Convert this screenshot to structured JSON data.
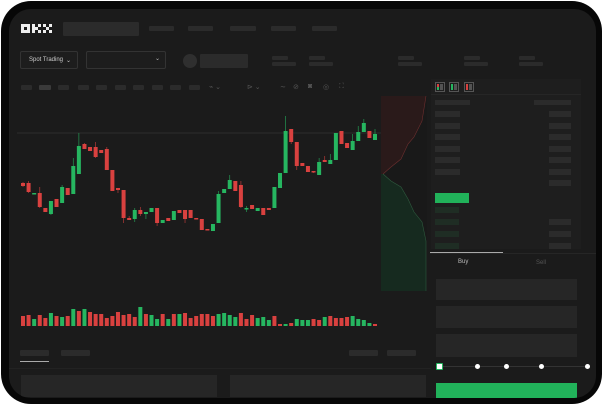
{
  "header": {
    "logo": "OKX",
    "nav_count": 5
  },
  "market_bar": {
    "trading_mode": "Spot Trading",
    "pair_selector": ""
  },
  "order_panel": {
    "tabs": [
      {
        "label": "Buy",
        "active": true
      },
      {
        "label": "Sell",
        "active": false
      }
    ],
    "slider_percent": 0,
    "submit_color": "#21b25a"
  },
  "colors": {
    "up": "#26b660",
    "down": "#d9413f",
    "background": "#1b1b1b"
  },
  "icons": [
    "order-book-both-icon",
    "order-book-bids-icon",
    "order-book-asks-icon",
    "indicator-icon",
    "drawing-icon",
    "ruler-icon",
    "camera-icon",
    "settings-icon",
    "fullscreen-icon"
  ],
  "chart_data": {
    "type": "candlestick",
    "ohlc": [
      [
        68,
        69,
        64,
        65
      ],
      [
        68,
        70,
        58,
        59
      ],
      [
        57,
        58,
        57,
        58
      ],
      [
        58,
        64,
        43,
        44
      ],
      [
        43,
        43,
        39,
        39
      ],
      [
        37,
        50,
        36,
        50
      ],
      [
        52,
        52,
        44,
        44
      ],
      [
        48,
        66,
        48,
        64
      ],
      [
        63,
        63,
        56,
        56
      ],
      [
        57,
        93,
        57,
        85
      ],
      [
        77,
        118,
        77,
        105
      ],
      [
        107,
        108,
        102,
        102
      ],
      [
        104,
        104,
        100,
        100
      ],
      [
        104,
        109,
        93,
        94
      ],
      [
        101,
        101,
        98,
        98
      ],
      [
        102,
        104,
        81,
        81
      ],
      [
        81,
        81,
        60,
        60
      ],
      [
        63,
        63,
        58,
        61
      ],
      [
        61,
        61,
        28,
        33
      ],
      [
        33,
        35,
        31,
        31
      ],
      [
        32,
        43,
        29,
        41
      ],
      [
        41,
        44,
        35,
        37
      ],
      [
        37,
        39,
        32,
        39
      ],
      [
        39,
        43,
        39,
        43
      ],
      [
        43,
        43,
        25,
        28
      ],
      [
        28,
        31,
        28,
        31
      ],
      [
        33,
        33,
        30,
        30
      ],
      [
        31,
        40,
        31,
        40
      ],
      [
        41,
        41,
        38,
        38
      ],
      [
        41,
        41,
        28,
        32
      ],
      [
        41,
        41,
        33,
        33
      ],
      [
        33,
        33,
        32,
        32
      ],
      [
        32,
        32,
        21,
        21
      ],
      [
        22,
        22,
        21,
        21
      ],
      [
        20,
        27,
        20,
        27
      ],
      [
        28,
        60,
        28,
        57
      ],
      [
        58,
        62,
        58,
        62
      ],
      [
        62,
        76,
        62,
        71
      ],
      [
        70,
        70,
        60,
        60
      ],
      [
        66,
        70,
        43,
        44
      ],
      [
        42,
        45,
        39,
        43
      ],
      [
        46,
        46,
        42,
        42
      ],
      [
        40,
        43,
        40,
        43
      ],
      [
        43,
        43,
        36,
        36
      ],
      [
        43,
        43,
        41,
        41
      ],
      [
        43,
        64,
        43,
        64
      ],
      [
        63,
        78,
        63,
        78
      ],
      [
        78,
        135,
        78,
        120
      ],
      [
        122,
        122,
        107,
        109
      ],
      [
        109,
        109,
        81,
        85
      ],
      [
        88,
        88,
        85,
        85
      ],
      [
        85,
        85,
        79,
        79
      ],
      [
        80,
        80,
        78,
        79
      ],
      [
        76,
        93,
        76,
        89
      ],
      [
        91,
        95,
        89,
        89
      ],
      [
        87,
        97,
        87,
        91
      ],
      [
        91,
        118,
        91,
        118
      ],
      [
        120,
        120,
        107,
        107
      ],
      [
        108,
        108,
        103,
        103
      ],
      [
        101,
        117,
        101,
        110
      ],
      [
        110,
        125,
        110,
        119
      ],
      [
        119,
        132,
        119,
        128
      ],
      [
        120,
        120,
        113,
        113
      ],
      [
        111,
        122,
        111,
        117
      ]
    ],
    "volume": [
      10,
      11,
      7,
      11,
      8,
      13,
      10,
      9,
      10,
      17,
      15,
      17,
      14,
      12,
      12,
      8,
      10,
      14,
      11,
      12,
      9,
      19,
      12,
      11,
      7,
      12,
      7,
      12,
      12,
      13,
      8,
      10,
      12,
      12,
      10,
      12,
      13,
      11,
      9,
      13,
      7,
      11,
      8,
      9,
      6,
      10,
      2,
      2,
      3,
      7,
      6,
      6,
      7,
      6,
      9,
      10,
      8,
      8,
      9,
      10,
      7,
      6,
      3,
      2
    ],
    "volume_dir": [
      "d",
      "d",
      "u",
      "d",
      "d",
      "u",
      "d",
      "u",
      "d",
      "u",
      "d",
      "u",
      "d",
      "d",
      "d",
      "d",
      "d",
      "d",
      "d",
      "d",
      "d",
      "u",
      "d",
      "u",
      "u",
      "d",
      "u",
      "d",
      "u",
      "d",
      "d",
      "d",
      "d",
      "d",
      "d",
      "u",
      "u",
      "u",
      "u",
      "d",
      "d",
      "d",
      "u",
      "u",
      "u",
      "d",
      "d",
      "u",
      "d",
      "u",
      "u",
      "u",
      "d",
      "d",
      "u",
      "d",
      "d",
      "d",
      "d",
      "u",
      "u",
      "u",
      "u",
      "d"
    ],
    "grid": false,
    "axes_labels": false
  }
}
